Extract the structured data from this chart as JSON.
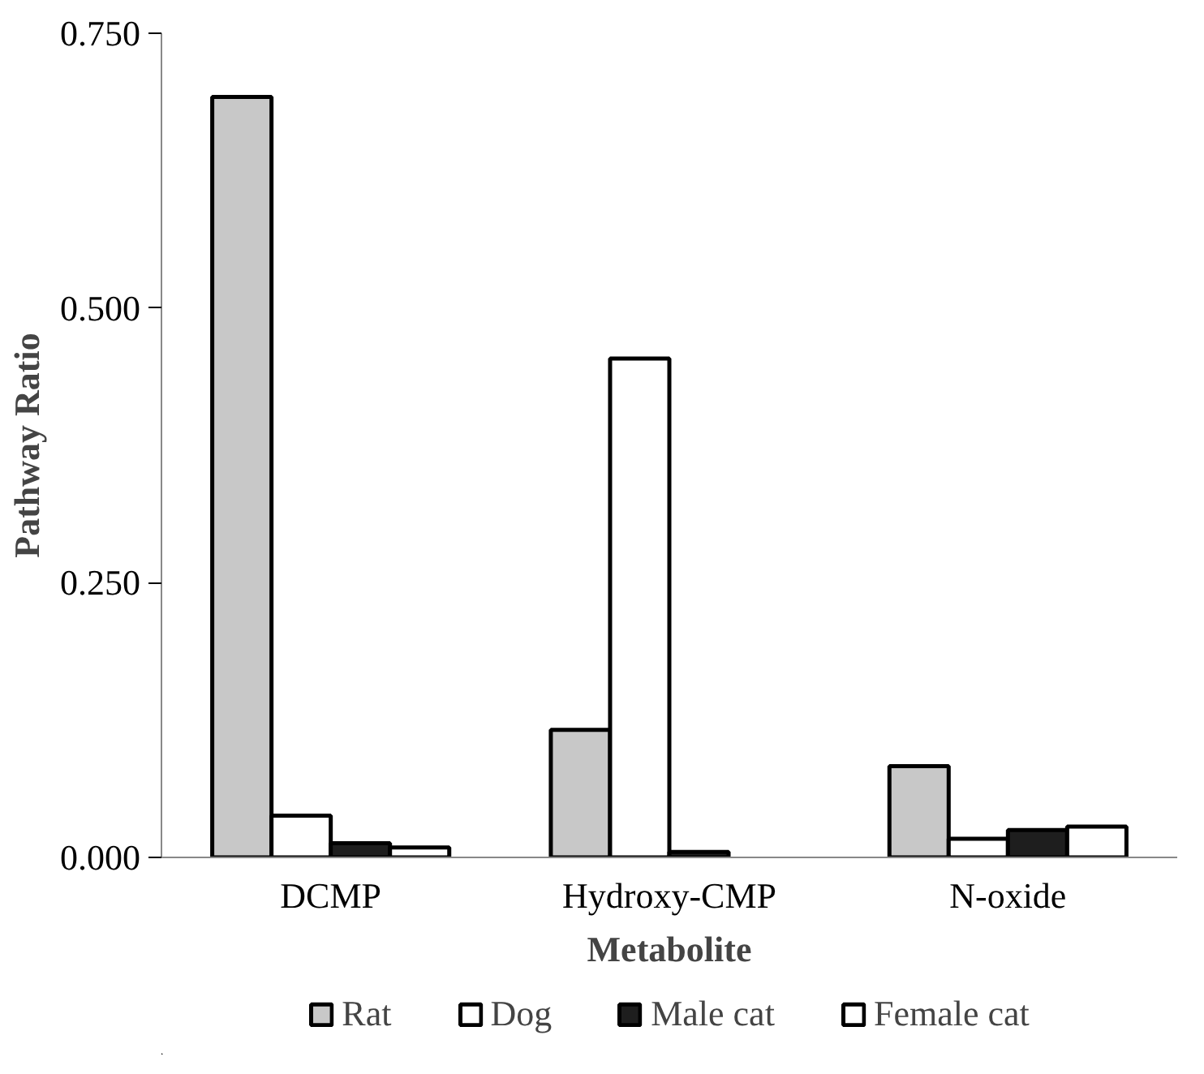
{
  "chart_data": {
    "type": "bar",
    "xlabel": "Metabolite",
    "ylabel": "Pathway Ratio",
    "categories": [
      "DCMP",
      "Hydroxy-CMP",
      "N-oxide"
    ],
    "series": [
      {
        "name": "Rat",
        "color": "#c8c8c8",
        "values": [
          0.692,
          0.116,
          0.083
        ]
      },
      {
        "name": "Dog",
        "color": "#ffffff",
        "values": [
          0.038,
          0.454,
          0.017
        ]
      },
      {
        "name": "Male cat",
        "color": "#1e1e1e",
        "values": [
          0.013,
          0.005,
          0.025
        ]
      },
      {
        "name": "Female cat",
        "color": "#ffffff",
        "values": [
          0.009,
          null,
          0.028
        ]
      }
    ],
    "ylim": [
      0,
      0.75
    ],
    "yticks": [
      {
        "value": 0,
        "label": "0.000"
      },
      {
        "value": 0.25,
        "label": "0.250"
      },
      {
        "value": 0.5,
        "label": "0.500"
      },
      {
        "value": 0.75,
        "label": "0.750"
      }
    ],
    "grid": false,
    "legend": "bottom"
  }
}
